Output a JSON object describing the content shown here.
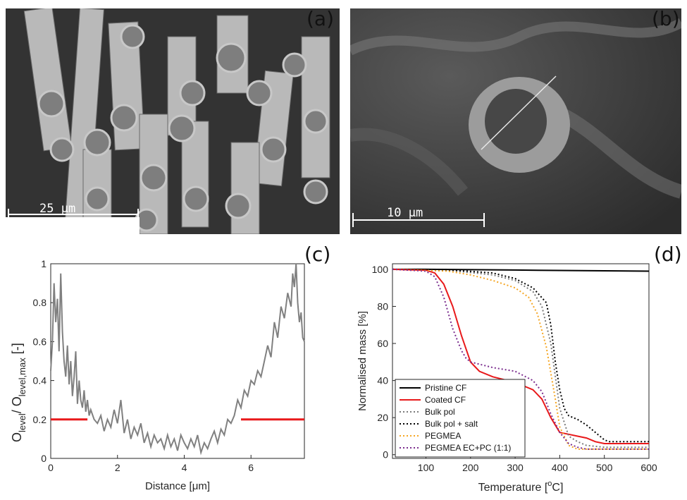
{
  "panels": {
    "a": {
      "label": "(a)",
      "scale_text": "25 μm"
    },
    "b": {
      "label": "(b)",
      "scale_text": "10 μm"
    },
    "c": {
      "label": "(c)"
    },
    "d": {
      "label": "(d)"
    }
  },
  "colors": {
    "grey_trace": "#808080",
    "red": "#e8191b",
    "black": "#000000",
    "orange": "#f5a623",
    "purple": "#7b2d8e"
  },
  "chart_data": [
    {
      "type": "line",
      "panel": "c",
      "xlabel": "Distance [μm]",
      "ylabel_parts": {
        "O": "O",
        "sub1": "level",
        "slash": "/ O",
        "sub2": "level,max",
        "unit": " [-]"
      },
      "xlim": [
        0,
        7.6
      ],
      "ylim": [
        0,
        1
      ],
      "xticks": [
        0,
        2,
        4,
        6
      ],
      "yticks": [
        0,
        0.2,
        0.4,
        0.6,
        0.8,
        1
      ],
      "series": [
        {
          "color": "#808080",
          "x": [
            0.0,
            0.05,
            0.1,
            0.15,
            0.2,
            0.25,
            0.3,
            0.35,
            0.4,
            0.45,
            0.5,
            0.55,
            0.6,
            0.65,
            0.7,
            0.75,
            0.8,
            0.85,
            0.9,
            0.95,
            1.0,
            1.05,
            1.1,
            1.15,
            1.2,
            1.3,
            1.4,
            1.5,
            1.6,
            1.7,
            1.8,
            1.9,
            2.0,
            2.1,
            2.2,
            2.3,
            2.4,
            2.5,
            2.6,
            2.7,
            2.8,
            2.9,
            3.0,
            3.1,
            3.2,
            3.3,
            3.4,
            3.5,
            3.6,
            3.7,
            3.8,
            3.9,
            4.0,
            4.1,
            4.2,
            4.3,
            4.4,
            4.5,
            4.6,
            4.7,
            4.8,
            4.9,
            5.0,
            5.1,
            5.2,
            5.3,
            5.4,
            5.5,
            5.6,
            5.7,
            5.8,
            5.9,
            6.0,
            6.1,
            6.2,
            6.3,
            6.4,
            6.5,
            6.6,
            6.7,
            6.8,
            6.9,
            7.0,
            7.1,
            7.2,
            7.25,
            7.3,
            7.35,
            7.4,
            7.45,
            7.5,
            7.55,
            7.6
          ],
          "y": [
            0.45,
            0.6,
            0.9,
            0.7,
            0.82,
            0.55,
            0.95,
            0.65,
            0.5,
            0.42,
            0.58,
            0.38,
            0.5,
            0.32,
            0.42,
            0.55,
            0.28,
            0.4,
            0.3,
            0.26,
            0.35,
            0.24,
            0.3,
            0.22,
            0.25,
            0.2,
            0.18,
            0.22,
            0.14,
            0.2,
            0.16,
            0.25,
            0.18,
            0.3,
            0.13,
            0.2,
            0.1,
            0.16,
            0.12,
            0.18,
            0.08,
            0.13,
            0.06,
            0.12,
            0.08,
            0.1,
            0.05,
            0.12,
            0.06,
            0.1,
            0.04,
            0.12,
            0.08,
            0.05,
            0.1,
            0.06,
            0.12,
            0.03,
            0.08,
            0.05,
            0.1,
            0.14,
            0.08,
            0.15,
            0.12,
            0.2,
            0.18,
            0.22,
            0.3,
            0.26,
            0.35,
            0.32,
            0.4,
            0.38,
            0.45,
            0.42,
            0.5,
            0.58,
            0.52,
            0.7,
            0.62,
            0.78,
            0.72,
            0.85,
            0.78,
            0.95,
            0.88,
            1.0,
            0.8,
            0.7,
            0.75,
            0.62,
            0.6
          ]
        },
        {
          "color": "#e8191b",
          "x": [
            0,
            1.1
          ],
          "y": [
            0.2,
            0.2
          ]
        },
        {
          "color": "#e8191b",
          "x": [
            5.7,
            7.6
          ],
          "y": [
            0.2,
            0.2
          ]
        }
      ]
    },
    {
      "type": "line",
      "panel": "d",
      "xlabel_parts": {
        "main": "Temperature [",
        "sup": "o",
        "end": "C]"
      },
      "ylabel": "Normalised mass [%]",
      "xlim": [
        25,
        600
      ],
      "ylim": [
        -2,
        103
      ],
      "xticks": [
        100,
        200,
        300,
        400,
        500,
        600
      ],
      "yticks": [
        0,
        20,
        40,
        60,
        80,
        100
      ],
      "legend_position": "bottom-left",
      "series": [
        {
          "name": "Pristine CF",
          "color": "#000000",
          "style": "solid",
          "x": [
            25,
            100,
            200,
            300,
            400,
            500,
            600
          ],
          "y": [
            100,
            100,
            99.8,
            99.6,
            99.4,
            99.2,
            99
          ]
        },
        {
          "name": "Coated CF",
          "color": "#e8191b",
          "style": "solid",
          "x": [
            25,
            100,
            120,
            140,
            160,
            180,
            200,
            220,
            250,
            300,
            340,
            360,
            380,
            400,
            420,
            440,
            460,
            480,
            500,
            550,
            600
          ],
          "y": [
            100,
            99.5,
            98,
            92,
            80,
            64,
            50,
            45,
            42,
            39,
            35,
            30,
            20,
            12,
            11,
            10,
            9,
            7,
            6,
            6,
            6
          ]
        },
        {
          "name": "Bulk pol",
          "color": "#7a7a7a",
          "style": "dotted",
          "x": [
            25,
            150,
            250,
            300,
            340,
            360,
            380,
            400,
            420,
            440,
            460,
            500,
            600
          ],
          "y": [
            100,
            99.5,
            97,
            94,
            88,
            80,
            60,
            25,
            10,
            7,
            5,
            4,
            4
          ]
        },
        {
          "name": "Bulk pol + salt",
          "color": "#000000",
          "style": "dotted",
          "x": [
            25,
            150,
            250,
            300,
            340,
            370,
            380,
            390,
            400,
            410,
            420,
            440,
            460,
            480,
            500,
            510,
            600
          ],
          "y": [
            100,
            99.8,
            98,
            95,
            90,
            82,
            70,
            50,
            35,
            25,
            21,
            19,
            16,
            12,
            8,
            7,
            7
          ]
        },
        {
          "name": "PEGMEA",
          "color": "#f5a623",
          "style": "dotted",
          "x": [
            25,
            150,
            200,
            250,
            300,
            330,
            350,
            370,
            390,
            400,
            420,
            440,
            460,
            500,
            600
          ],
          "y": [
            100,
            99,
            97,
            94,
            90,
            85,
            76,
            58,
            30,
            15,
            5,
            3,
            3,
            3,
            3
          ]
        },
        {
          "name": "PEGMEA EC+PC (1:1)",
          "color": "#7b2d8e",
          "style": "dotted",
          "x": [
            25,
            100,
            120,
            140,
            160,
            180,
            190,
            200,
            250,
            300,
            340,
            360,
            380,
            400,
            420,
            440,
            460,
            600
          ],
          "y": [
            100,
            99,
            96,
            85,
            68,
            56,
            52,
            50,
            47,
            45,
            40,
            34,
            22,
            12,
            6,
            4,
            3,
            3
          ]
        }
      ]
    }
  ]
}
